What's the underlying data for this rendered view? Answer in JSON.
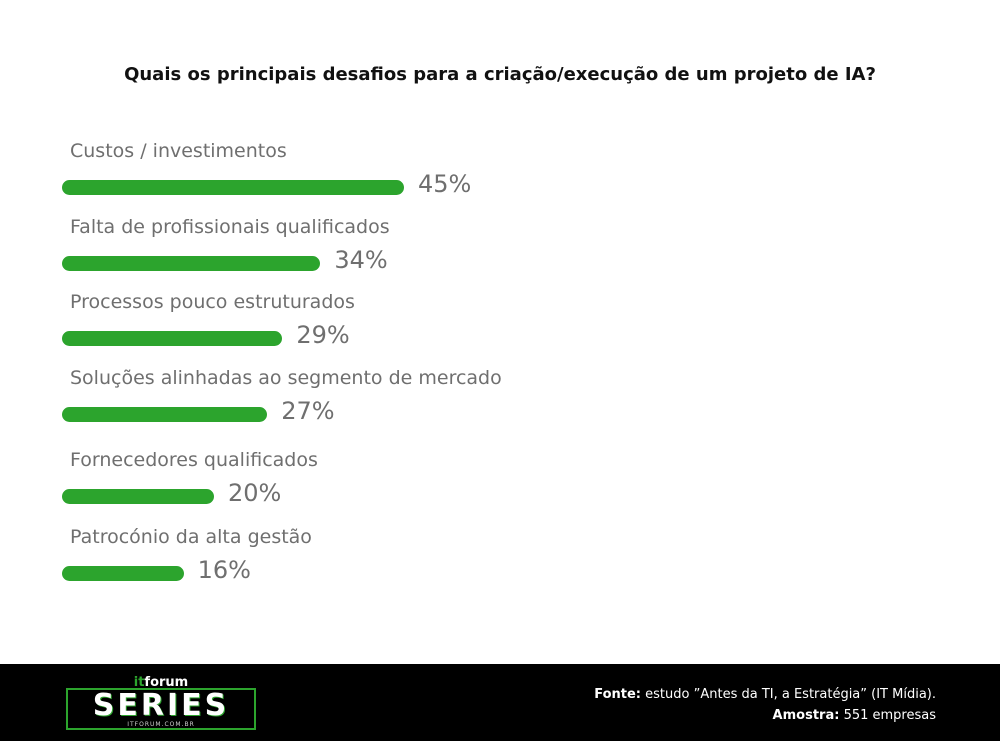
{
  "chart_data": {
    "type": "bar",
    "orientation": "horizontal",
    "title": "Quais os principais desafios para a criação/execução de um projeto de IA?",
    "categories": [
      "Custos / investimentos",
      "Falta de profissionais qualificados",
      "Processos pouco estruturados",
      "Soluções alinhadas ao segmento de mercado",
      "Fornecedores qualificados",
      "Patrocónio da alta gestão"
    ],
    "values": [
      45,
      34,
      29,
      27,
      20,
      16
    ],
    "value_labels": [
      "45%",
      "34%",
      "29%",
      "27%",
      "20%",
      "16%"
    ],
    "unit": "%",
    "bar_color": "#2ca42d",
    "grid": false
  },
  "footer": {
    "logo": {
      "brand_it": "it",
      "brand_rest": "forum",
      "series": "SERIES",
      "url": "ITFORUM.COM.BR"
    },
    "source_label": "Fonte:",
    "source_text": "estudo ”Antes da TI, a Estratégia” (IT Mídia).",
    "sample_label": "Amostra:",
    "sample_text": "551 empresas",
    "background_color": "#000000",
    "accent_color": "#2ca42d"
  }
}
